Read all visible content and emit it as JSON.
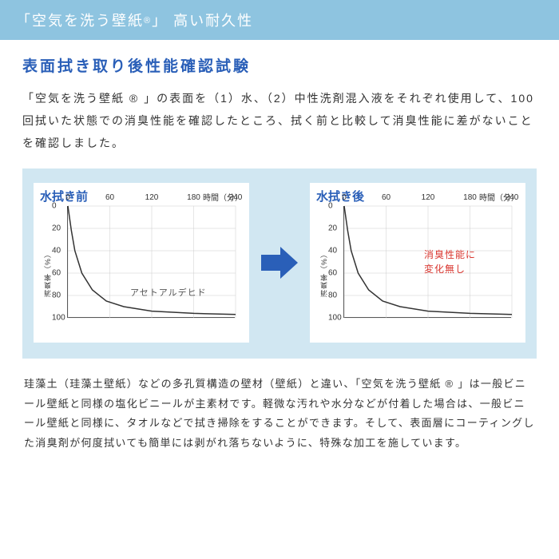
{
  "header": {
    "title_prefix": "「空気を洗う壁紙",
    "reg": "®",
    "title_suffix": "」 高い耐久性"
  },
  "section_title": "表面拭き取り後性能確認試験",
  "intro": "「空気を洗う壁紙 ® 」の表面を（1）水、（2）中性洗剤混入液をそれぞれ使用して、100 回拭いた状態での消臭性能を確認したところ、拭く前と比較して消臭性能に差がないことを確認しました。",
  "chart_common": {
    "x_label": "時間（分）",
    "y_label": "消臭率（%）",
    "x_ticks": [
      0,
      60,
      120,
      180,
      240
    ],
    "y_ticks": [
      0,
      20,
      40,
      60,
      80,
      100
    ],
    "xlim": [
      0,
      240
    ],
    "ylim": [
      0,
      100
    ],
    "grid_color": "#cccccc",
    "line_color": "#333333",
    "background": "#ffffff",
    "axis_fontsize": 10,
    "title_fontsize": 15,
    "title_color": "#2a5fb8"
  },
  "chart_before": {
    "title": "水拭き前",
    "annotation": "アセトアルデヒド",
    "series_points": [
      [
        0,
        0
      ],
      [
        5,
        22
      ],
      [
        10,
        40
      ],
      [
        20,
        60
      ],
      [
        35,
        75
      ],
      [
        55,
        85
      ],
      [
        80,
        90
      ],
      [
        120,
        94
      ],
      [
        180,
        96
      ],
      [
        240,
        97
      ]
    ]
  },
  "chart_after": {
    "title": "水拭き後",
    "annotation_line1": "消臭性能に",
    "annotation_line2": "変化無し",
    "annotation_color": "#d9362f",
    "series_points": [
      [
        0,
        0
      ],
      [
        5,
        22
      ],
      [
        10,
        40
      ],
      [
        20,
        60
      ],
      [
        35,
        75
      ],
      [
        55,
        85
      ],
      [
        80,
        90
      ],
      [
        120,
        94
      ],
      [
        180,
        96
      ],
      [
        240,
        97
      ]
    ]
  },
  "arrow": {
    "color": "#2a5fb8"
  },
  "footer": "珪藻土（珪藻土壁紙）などの多孔質構造の壁材（壁紙）と違い、「空気を洗う壁紙 ® 」は一般ビニール壁紙と同様の塩化ビニールが主素材です。軽微な汚れや水分などが付着した場合は、一般ビニール壁紙と同様に、タオルなどで拭き掃除をすることができます。そして、表面層にコーティングした消臭剤が何度拭いても簡単には剥がれ落ちないように、特殊な加工を施しています。"
}
